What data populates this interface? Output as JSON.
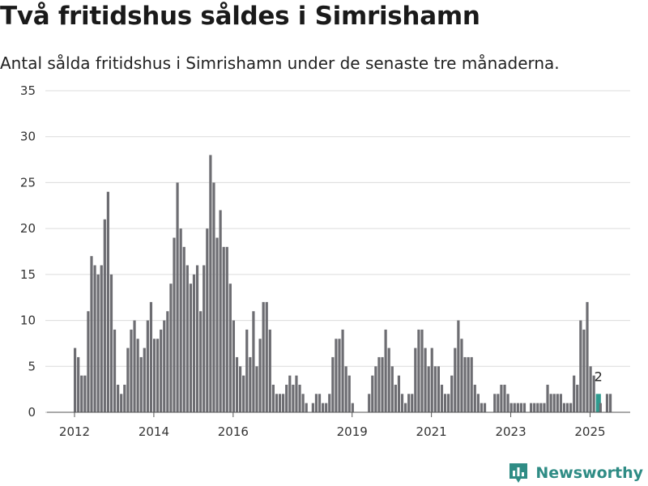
{
  "title": "Två fritidshus såldes i Simrishamn",
  "subtitle": "Antal sålda fritidshus i Simrishamn under de senaste tre månaderna.",
  "brand": {
    "name": "Newsworthy",
    "icon": "newsworthy-logo-icon",
    "color": "#2f8c85"
  },
  "chart_data": {
    "type": "bar",
    "title": "Två fritidshus såldes i Simrishamn",
    "subtitle": "Antal sålda fritidshus i Simrishamn under de senaste tre månaderna.",
    "ylim": [
      0,
      35
    ],
    "yticks": [
      0,
      5,
      10,
      15,
      20,
      25,
      30,
      35
    ],
    "xticks": [
      {
        "label": "2012",
        "at": 0
      },
      {
        "label": "2014",
        "at": 24
      },
      {
        "label": "2016",
        "at": 48
      },
      {
        "label": "2019",
        "at": 84
      },
      {
        "label": "2021",
        "at": 108
      },
      {
        "label": "2023",
        "at": 132
      },
      {
        "label": "2025",
        "at": 156
      }
    ],
    "grid": true,
    "bar_color": "#6d6d72",
    "highlight_color": "#2f9b8f",
    "highlight_index": 158,
    "highlight_label": "2",
    "values": [
      7,
      6,
      4,
      4,
      11,
      17,
      16,
      15,
      16,
      21,
      24,
      15,
      9,
      3,
      2,
      3,
      7,
      9,
      10,
      8,
      6,
      7,
      10,
      12,
      8,
      8,
      9,
      10,
      11,
      14,
      19,
      25,
      20,
      18,
      16,
      14,
      15,
      16,
      11,
      16,
      20,
      28,
      25,
      19,
      22,
      18,
      18,
      14,
      10,
      6,
      5,
      4,
      9,
      6,
      11,
      5,
      8,
      12,
      12,
      9,
      3,
      2,
      2,
      2,
      3,
      4,
      3,
      4,
      3,
      2,
      1,
      0,
      1,
      2,
      2,
      1,
      1,
      2,
      6,
      8,
      8,
      9,
      5,
      4,
      1,
      0,
      0,
      0,
      0,
      2,
      4,
      5,
      6,
      6,
      9,
      7,
      5,
      3,
      4,
      2,
      1,
      2,
      2,
      7,
      9,
      9,
      7,
      5,
      7,
      5,
      5,
      3,
      2,
      2,
      4,
      7,
      10,
      8,
      6,
      6,
      6,
      3,
      2,
      1,
      1,
      0,
      0,
      2,
      2,
      3,
      3,
      2,
      1,
      1,
      1,
      1,
      1,
      0,
      1,
      1,
      1,
      1,
      1,
      3,
      2,
      2,
      2,
      2,
      1,
      1,
      1,
      4,
      3,
      10,
      9,
      12,
      5,
      4,
      2,
      1,
      0,
      2,
      2
    ]
  }
}
